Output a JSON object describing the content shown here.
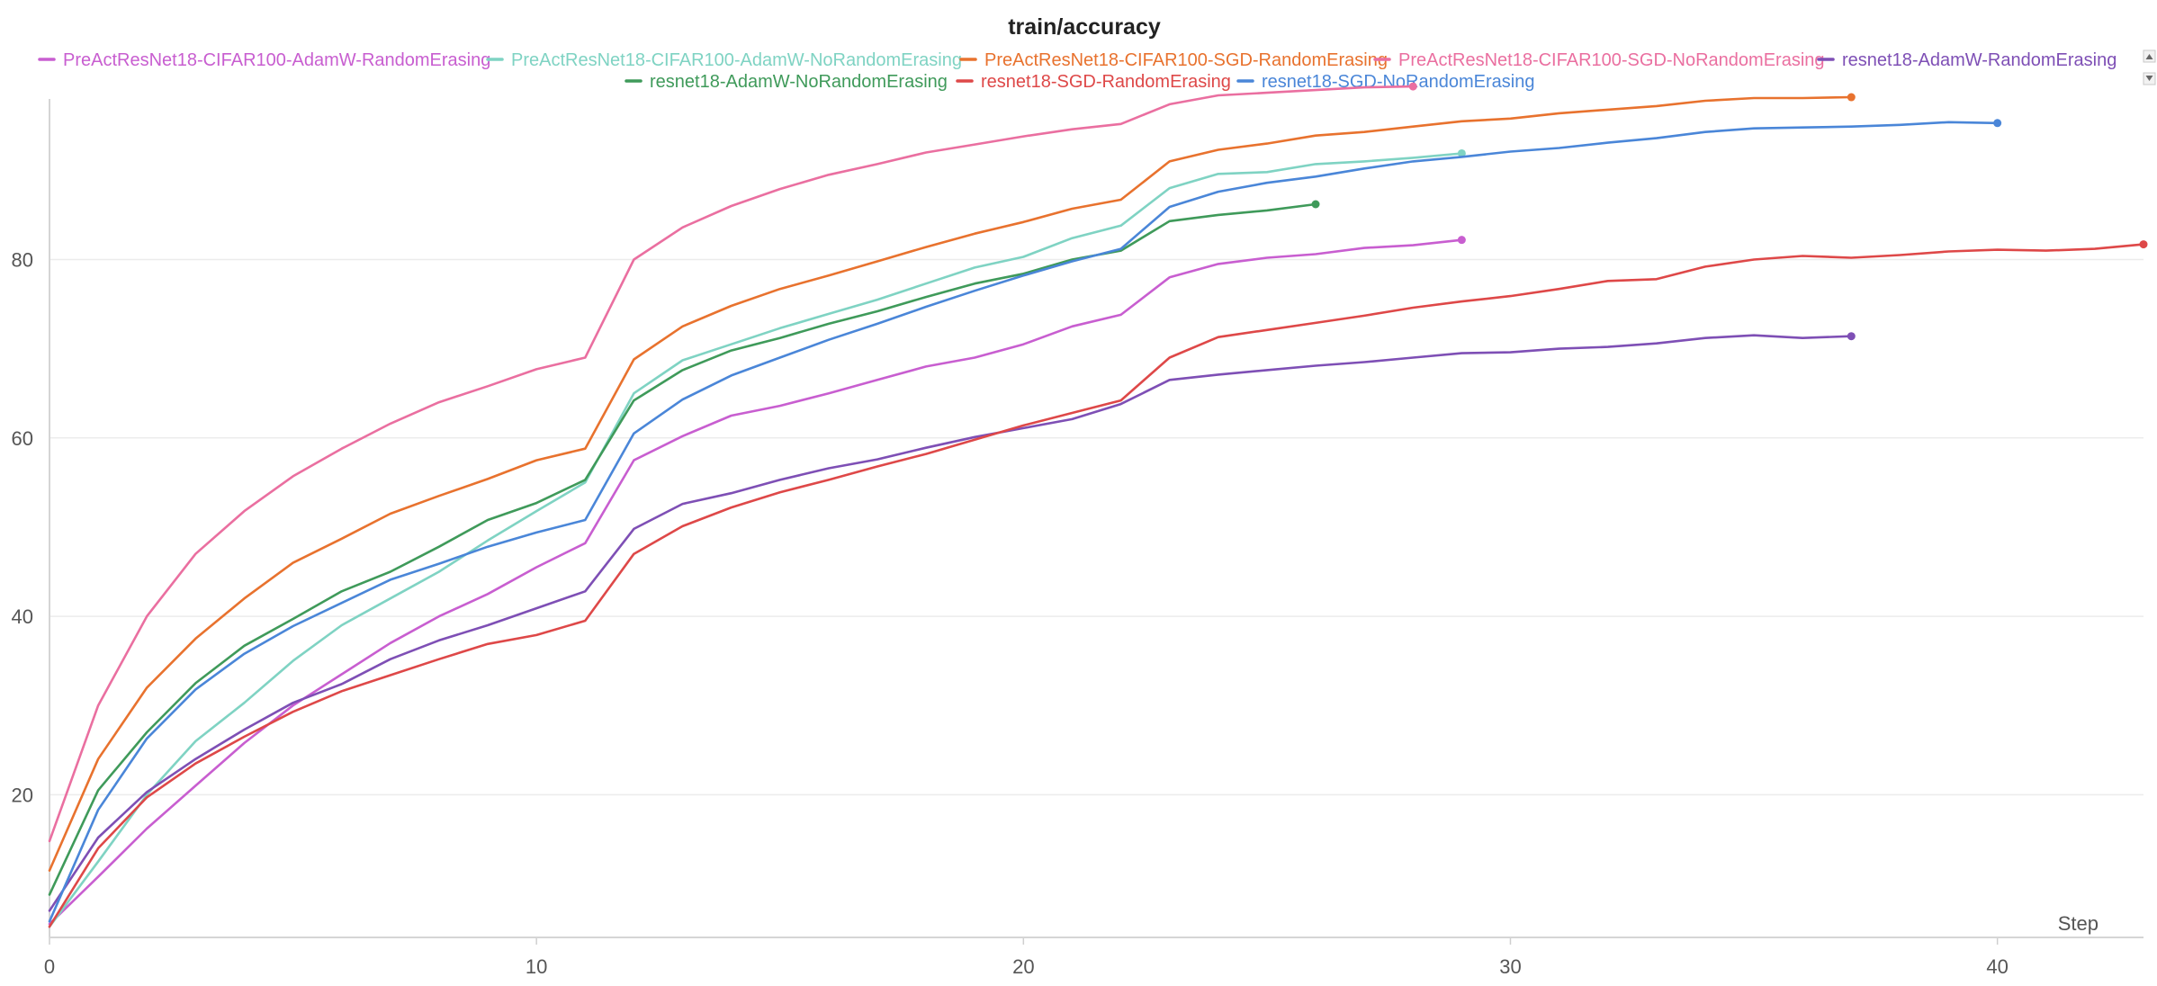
{
  "chart_data": {
    "type": "line",
    "title": "train/accuracy",
    "xlabel": "Step",
    "ylabel": "",
    "xlim": [
      0,
      43
    ],
    "ylim": [
      4,
      98
    ],
    "xticks": [
      0,
      10,
      20,
      30,
      40
    ],
    "yticks": [
      20,
      40,
      60,
      80
    ],
    "grid": true,
    "legend_position": "top",
    "series": [
      {
        "name": "PreActResNet18-CIFAR100-AdamW-RandomErasing",
        "color": "#c85ed0",
        "x": [
          0,
          1,
          2,
          3,
          4,
          5,
          6,
          7,
          8,
          9,
          10,
          11,
          12,
          13,
          14,
          15,
          16,
          17,
          18,
          19,
          20,
          21,
          22,
          23,
          24,
          25,
          26,
          27,
          28,
          29
        ],
        "y": [
          5.5,
          10.8,
          16.2,
          21.0,
          25.8,
          30.0,
          33.5,
          37.0,
          40.0,
          42.5,
          45.5,
          48.2,
          57.5,
          60.2,
          62.5,
          63.6,
          65.0,
          66.5,
          68.0,
          69.0,
          70.5,
          72.5,
          73.8,
          78.0,
          79.5,
          80.2,
          80.6,
          81.3,
          81.6,
          82.2
        ]
      },
      {
        "name": "PreActResNet18-CIFAR100-AdamW-NoRandomErasing",
        "color": "#7fd3c3",
        "x": [
          0,
          1,
          2,
          3,
          4,
          5,
          6,
          7,
          8,
          9,
          10,
          11,
          12,
          13,
          14,
          15,
          16,
          17,
          18,
          19,
          20,
          21,
          22,
          23,
          24,
          25,
          26,
          27,
          28,
          29
        ],
        "y": [
          5.2,
          12.5,
          20.0,
          26.0,
          30.3,
          35.0,
          39.0,
          42.0,
          45.0,
          48.5,
          51.8,
          55.0,
          65.0,
          68.7,
          70.5,
          72.3,
          73.9,
          75.5,
          77.3,
          79.1,
          80.3,
          82.4,
          83.8,
          88.0,
          89.6,
          89.8,
          90.7,
          91.0,
          91.4,
          91.9
        ]
      },
      {
        "name": "PreActResNet18-CIFAR100-SGD-RandomErasing",
        "color": "#e8722e",
        "x": [
          0,
          1,
          2,
          3,
          4,
          5,
          6,
          7,
          8,
          9,
          10,
          11,
          12,
          13,
          14,
          15,
          16,
          17,
          18,
          19,
          20,
          21,
          22,
          23,
          24,
          25,
          26,
          27,
          28,
          29,
          30,
          31,
          32,
          33,
          34,
          35,
          36,
          37
        ],
        "y": [
          11.5,
          24.0,
          32.0,
          37.5,
          42.0,
          46.0,
          48.7,
          51.5,
          53.5,
          55.4,
          57.5,
          58.8,
          68.8,
          72.5,
          74.8,
          76.7,
          78.2,
          79.8,
          81.4,
          82.9,
          84.2,
          85.7,
          86.7,
          91.0,
          92.3,
          93.0,
          93.9,
          94.3,
          94.9,
          95.5,
          95.8,
          96.4,
          96.8,
          97.2,
          97.8,
          98.1,
          98.1,
          98.2
        ]
      },
      {
        "name": "PreActResNet18-CIFAR100-SGD-NoRandomErasing",
        "color": "#ea6fa0",
        "x": [
          0,
          1,
          2,
          3,
          4,
          5,
          6,
          7,
          8,
          9,
          10,
          11,
          12,
          13,
          14,
          15,
          16,
          17,
          18,
          19,
          20,
          21,
          22,
          23,
          24,
          25,
          26,
          27,
          28
        ],
        "y": [
          14.8,
          30.0,
          40.0,
          47.0,
          51.8,
          55.7,
          58.8,
          61.6,
          64.0,
          65.8,
          67.7,
          69.0,
          80.0,
          83.6,
          86.0,
          87.9,
          89.5,
          90.7,
          92.0,
          92.9,
          93.8,
          94.6,
          95.2,
          97.4,
          98.4,
          98.7,
          99.0,
          99.3,
          99.4
        ]
      },
      {
        "name": "resnet18-AdamW-RandomErasing",
        "color": "#7e4fb5",
        "x": [
          0,
          1,
          2,
          3,
          4,
          5,
          6,
          7,
          8,
          9,
          10,
          11,
          12,
          13,
          14,
          15,
          16,
          17,
          18,
          19,
          20,
          21,
          22,
          23,
          24,
          25,
          26,
          27,
          28,
          29,
          30,
          31,
          32,
          33,
          34,
          35,
          36,
          37
        ],
        "y": [
          7.0,
          15.2,
          20.3,
          24.0,
          27.3,
          30.3,
          32.4,
          35.2,
          37.3,
          39.0,
          40.9,
          42.8,
          49.8,
          52.6,
          53.8,
          55.3,
          56.6,
          57.6,
          58.9,
          60.1,
          61.1,
          62.1,
          63.8,
          66.5,
          67.1,
          67.6,
          68.1,
          68.5,
          69.0,
          69.5,
          69.6,
          70.0,
          70.2,
          70.6,
          71.2,
          71.5,
          71.2,
          71.4
        ]
      },
      {
        "name": "resnet18-AdamW-NoRandomErasing",
        "color": "#3f9a5a",
        "x": [
          0,
          1,
          2,
          3,
          4,
          5,
          6,
          7,
          8,
          9,
          10,
          11,
          12,
          13,
          14,
          15,
          16,
          17,
          18,
          19,
          20,
          21,
          22,
          23,
          24,
          25,
          26
        ],
        "y": [
          8.8,
          20.5,
          27.0,
          32.5,
          36.7,
          39.7,
          42.8,
          45.0,
          47.8,
          50.8,
          52.7,
          55.3,
          64.2,
          67.6,
          69.8,
          71.2,
          72.8,
          74.2,
          75.8,
          77.3,
          78.4,
          80.0,
          81.0,
          84.3,
          85.0,
          85.5,
          86.2
        ]
      },
      {
        "name": "resnet18-SGD-RandomErasing",
        "color": "#de4848",
        "x": [
          0,
          1,
          2,
          3,
          4,
          5,
          6,
          7,
          8,
          9,
          10,
          11,
          12,
          13,
          14,
          15,
          16,
          17,
          18,
          19,
          20,
          21,
          22,
          23,
          24,
          25,
          26,
          27,
          28,
          29,
          30,
          31,
          32,
          33,
          34,
          35,
          36,
          37,
          38,
          39,
          40,
          41,
          42,
          43
        ],
        "y": [
          5.2,
          14.0,
          19.7,
          23.5,
          26.5,
          29.3,
          31.6,
          33.4,
          35.2,
          36.9,
          37.9,
          39.5,
          47.0,
          50.1,
          52.2,
          53.9,
          55.3,
          56.8,
          58.2,
          59.8,
          61.4,
          62.8,
          64.2,
          69.0,
          71.3,
          72.1,
          72.9,
          73.7,
          74.6,
          75.3,
          75.9,
          76.7,
          77.6,
          77.8,
          79.2,
          80.0,
          80.4,
          80.2,
          80.5,
          80.9,
          81.1,
          81.0,
          81.2,
          81.7
        ]
      },
      {
        "name": "resnet18-SGD-NoRandomErasing",
        "color": "#4a86d8",
        "x": [
          0,
          1,
          2,
          3,
          4,
          5,
          6,
          7,
          8,
          9,
          10,
          11,
          12,
          13,
          14,
          15,
          16,
          17,
          18,
          19,
          20,
          21,
          22,
          23,
          24,
          25,
          26,
          27,
          28,
          29,
          30,
          31,
          32,
          33,
          34,
          35,
          36,
          37,
          38,
          39,
          40
        ],
        "y": [
          5.8,
          18.3,
          26.3,
          31.8,
          35.8,
          38.9,
          41.5,
          44.1,
          45.9,
          47.8,
          49.4,
          50.8,
          60.5,
          64.3,
          67.0,
          69.0,
          71.0,
          72.8,
          74.7,
          76.5,
          78.2,
          79.8,
          81.2,
          85.9,
          87.6,
          88.6,
          89.3,
          90.2,
          91.0,
          91.5,
          92.1,
          92.5,
          93.1,
          93.6,
          94.3,
          94.7,
          94.8,
          94.9,
          95.1,
          95.4,
          95.3
        ]
      }
    ]
  }
}
